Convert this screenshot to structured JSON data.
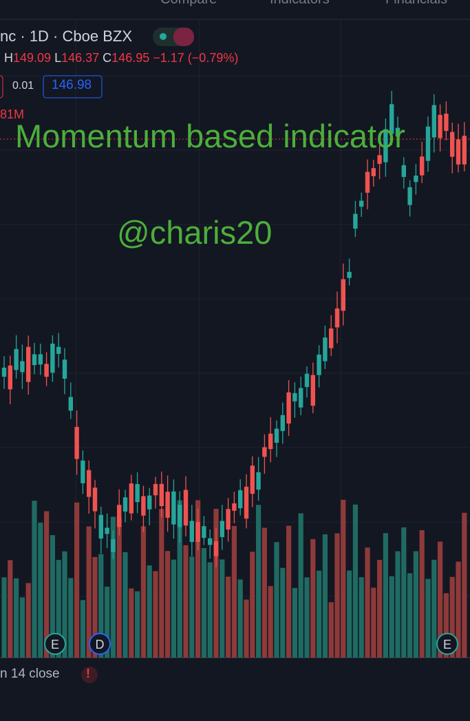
{
  "toolbar": {
    "items": [
      "Compare",
      "Indicators",
      "Financials"
    ]
  },
  "symbol": {
    "name": "nc",
    "interval": "1D",
    "exchange": "Cboe BZX"
  },
  "ohlc": {
    "high_label": "H",
    "high": "149.09",
    "low_label": "L",
    "low": "146.37",
    "close_label": "C",
    "close": "146.95",
    "change": "−1.17 (−0.79%)"
  },
  "quote": {
    "spread": "0.01",
    "ask": "146.98"
  },
  "volume_label": "81M",
  "watermark": {
    "title": "Momentum based indicator",
    "author": "@charis20"
  },
  "markers": [
    "E",
    "D",
    "E"
  ],
  "indicator": {
    "label": "n 14 close",
    "alert": "!"
  }
}
